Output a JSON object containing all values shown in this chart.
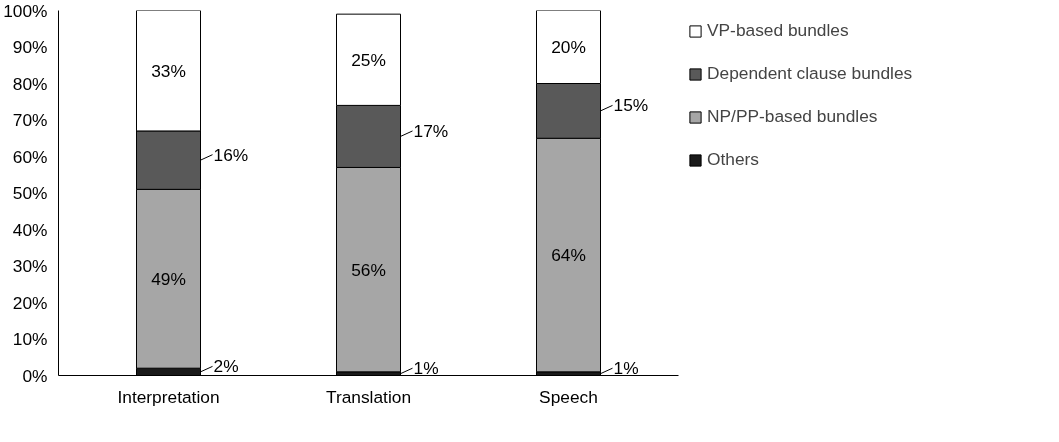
{
  "chart_data": {
    "type": "bar",
    "stacked": true,
    "categories": [
      "Interpretation",
      "Translation",
      "Speech"
    ],
    "series": [
      {
        "name": "Others",
        "color": "#1a1a1a",
        "values": [
          2,
          1,
          1
        ],
        "value_labels": [
          "2%",
          "1%",
          "1%"
        ]
      },
      {
        "name": "NP/PP-based bundles",
        "color": "#a6a6a6",
        "values": [
          49,
          56,
          64
        ],
        "value_labels": [
          "49%",
          "56%",
          "64%"
        ]
      },
      {
        "name": "Dependent clause bundles",
        "color": "#595959",
        "values": [
          16,
          17,
          15
        ],
        "value_labels": [
          "16%",
          "17%",
          "15%"
        ]
      },
      {
        "name": "VP-based bundles",
        "color": "#ffffff",
        "values": [
          33,
          25,
          20
        ],
        "value_labels": [
          "33%",
          "25%",
          "20%"
        ]
      }
    ],
    "ylim": [
      0,
      100
    ],
    "yticks": [
      {
        "value": 0,
        "label": "0%"
      },
      {
        "value": 10,
        "label": "10%"
      },
      {
        "value": 20,
        "label": "20%"
      },
      {
        "value": 30,
        "label": "30%"
      },
      {
        "value": 40,
        "label": "40%"
      },
      {
        "value": 50,
        "label": "50%"
      },
      {
        "value": 60,
        "label": "60%"
      },
      {
        "value": 70,
        "label": "70%"
      },
      {
        "value": 80,
        "label": "80%"
      },
      {
        "value": 90,
        "label": "90%"
      },
      {
        "value": 100,
        "label": "100%"
      }
    ],
    "grid": false,
    "legend": "right"
  }
}
